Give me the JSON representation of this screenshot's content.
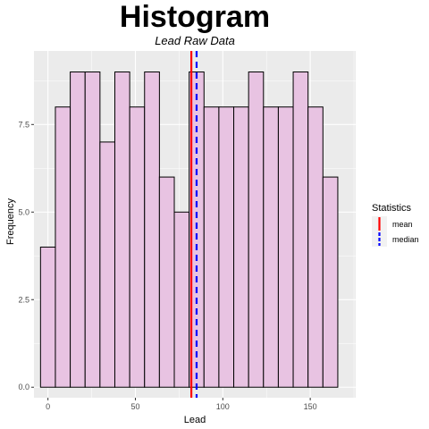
{
  "chart_data": {
    "type": "bar",
    "title": "Histogram",
    "subtitle": "Lead Raw Data",
    "xlabel": "Lead",
    "ylabel": "Frequency",
    "bin_width": 8.5,
    "bin_start": -4.25,
    "values": [
      4,
      8,
      9,
      9,
      7,
      9,
      8,
      9,
      6,
      5,
      9,
      8,
      8,
      8,
      9,
      8,
      8,
      9,
      8,
      6
    ],
    "xlim": [
      -8,
      176
    ],
    "ylim": [
      -0.3,
      9.6
    ],
    "x_ticks": [
      0,
      50,
      100,
      150
    ],
    "x_tick_labels": [
      "0",
      "50",
      "100",
      "150"
    ],
    "y_ticks": [
      0,
      2.5,
      5,
      7.5
    ],
    "y_tick_labels": [
      "0.0",
      "2.5",
      "5.0",
      "7.5"
    ],
    "grid": true,
    "bar_fill": "#e8c3e2",
    "bar_outline": "#000000",
    "panel_background": "#ebebeb",
    "lines": [
      {
        "name": "mean",
        "x": 82,
        "color": "#ff0000",
        "style": "solid"
      },
      {
        "name": "median",
        "x": 85,
        "color": "#0000ff",
        "style": "dashed"
      }
    ],
    "legend": {
      "title": "Statistics",
      "placement": "right",
      "items": [
        "mean",
        "median"
      ]
    }
  }
}
